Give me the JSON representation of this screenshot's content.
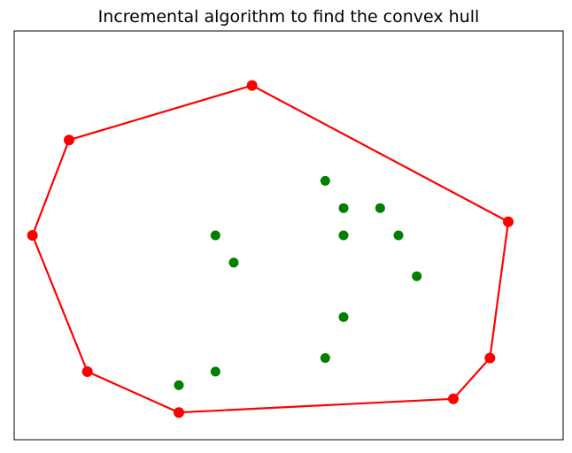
{
  "chart_data": {
    "type": "scatter",
    "title": "Incremental algorithm to find the convex hull",
    "xlabel": "",
    "ylabel": "",
    "xlim": [
      -2,
      28
    ],
    "ylim": [
      -1,
      29
    ],
    "ticks_visible": false,
    "grid": false,
    "colors": {
      "hull": "#ff0000",
      "interior": "#008000",
      "frame": "#000000"
    },
    "hull": {
      "x": [
        11,
        25,
        24,
        22,
        7,
        2,
        -1,
        1,
        11
      ],
      "y": [
        25,
        15,
        5,
        2,
        1,
        4,
        14,
        21,
        25
      ]
    },
    "interior": {
      "x": [
        15,
        16,
        18,
        19,
        20,
        16,
        16,
        15,
        9,
        10,
        9,
        7
      ],
      "y": [
        18,
        16,
        16,
        14,
        11,
        14,
        8,
        5,
        14,
        12,
        4,
        3
      ]
    }
  }
}
